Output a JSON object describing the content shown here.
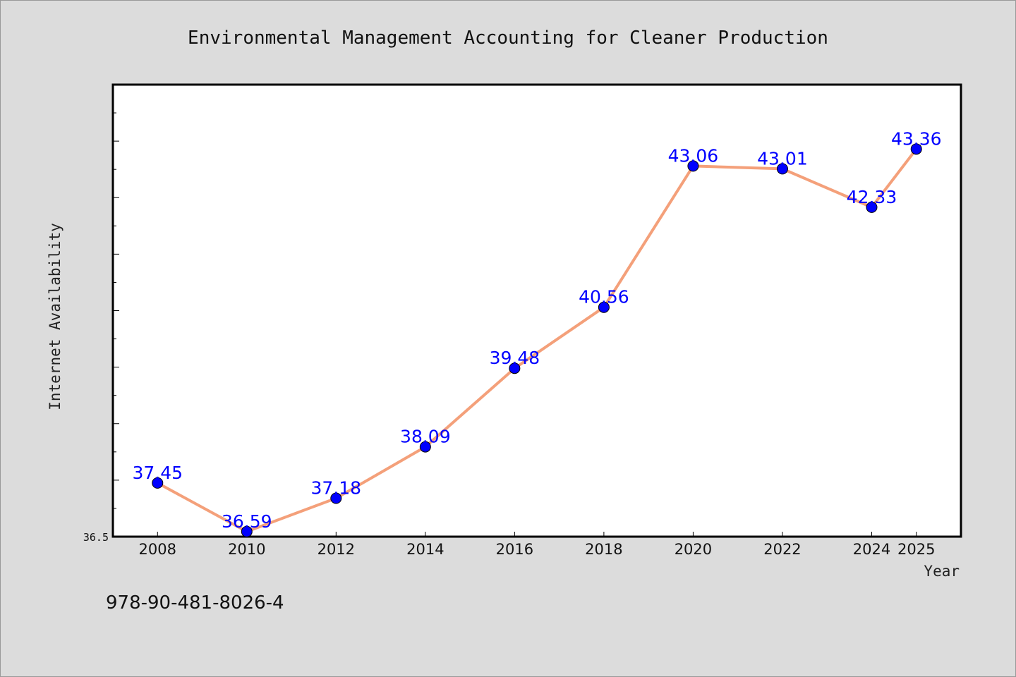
{
  "chart_data": {
    "type": "line",
    "title": "Environmental Management Accounting for Cleaner Production",
    "xlabel": "Year",
    "ylabel": "Internet Availability",
    "x": [
      2008,
      2010,
      2012,
      2014,
      2016,
      2018,
      2020,
      2022,
      2024,
      2025
    ],
    "xticks": [
      "2008",
      "2010",
      "2012",
      "2014",
      "2016",
      "2018",
      "2020",
      "2022",
      "2024",
      "2025"
    ],
    "series": [
      {
        "values": [
          37.45,
          36.59,
          37.18,
          38.09,
          39.48,
          40.56,
          43.06,
          43.01,
          42.33,
          43.36
        ],
        "labels": [
          "37.45",
          "36.59",
          "37.18",
          "38.09",
          "39.48",
          "40.56",
          "43.06",
          "43.01",
          "42.33",
          "43.36"
        ]
      }
    ],
    "ylim": [
      36.5,
      44.5
    ],
    "ytick_labels": [
      "36.5"
    ],
    "grid": false,
    "legend": "none",
    "line_color": "#f4a07a",
    "marker_color": "#0000ff",
    "label_color": "#0000ff",
    "frame_background": "#ffffff",
    "figure_background": "#dcdcdc"
  },
  "footnote": "978-90-481-8026-4"
}
